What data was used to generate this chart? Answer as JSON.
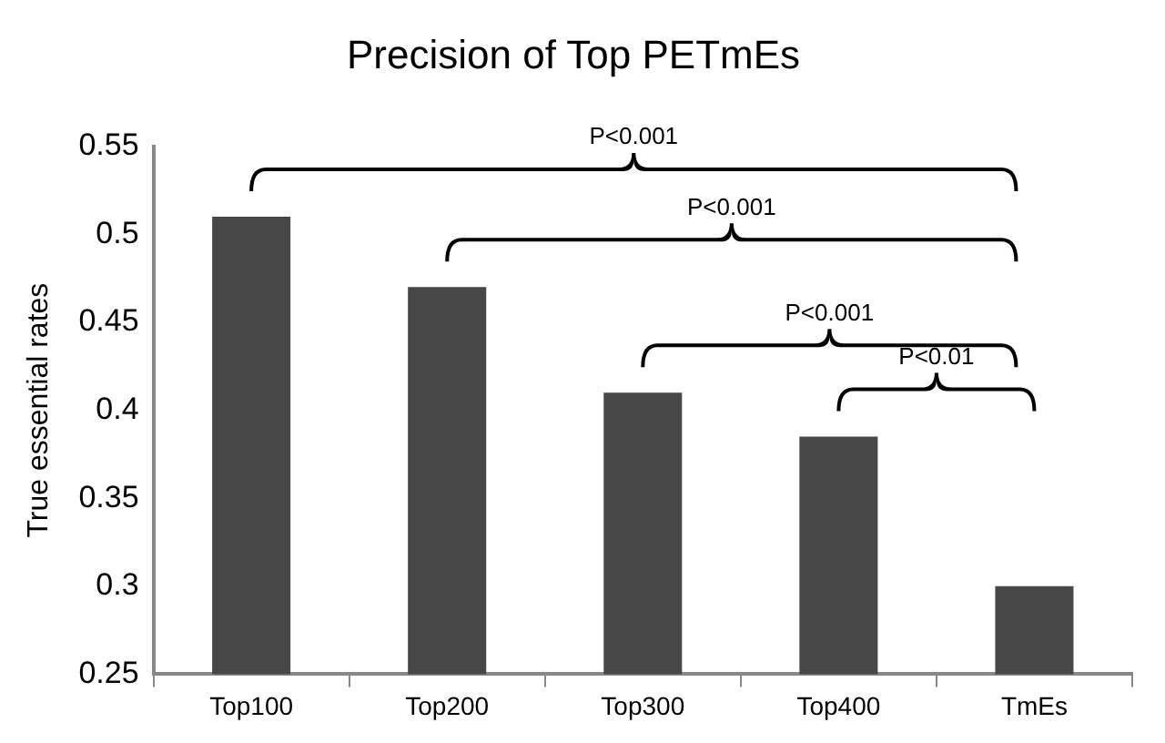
{
  "chart_data": {
    "type": "bar",
    "title": "Precision of Top PETmEs",
    "ylabel": "True essential rates",
    "categories": [
      "Top100",
      "Top200",
      "Top300",
      "Top400",
      "TmEs"
    ],
    "values": [
      0.51,
      0.47,
      0.41,
      0.385,
      0.3
    ],
    "color": "#474747",
    "ylim": [
      0.25,
      0.55
    ],
    "yticks": [
      0.25,
      0.3,
      0.35,
      0.4,
      0.45,
      0.5,
      0.55
    ],
    "annotations": [
      "P<0.001",
      "P<0.001",
      "P<0.001",
      "P<0.01"
    ]
  }
}
